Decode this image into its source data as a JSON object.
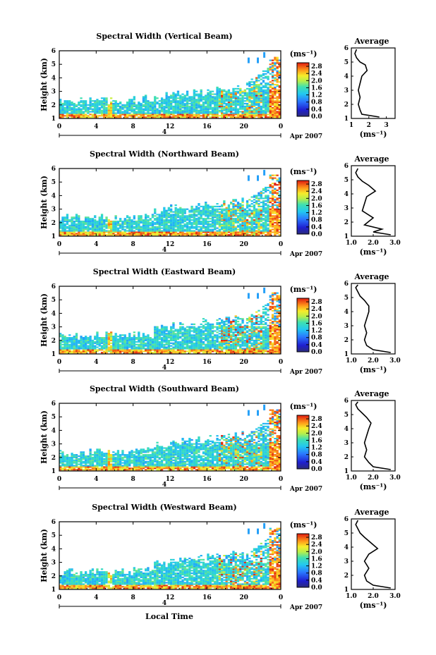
{
  "figure": {
    "xlabel": "Local Time",
    "ylabel": "Height (km)",
    "date_label": "Apr 2007",
    "day_label": "4",
    "x_ticks": [
      "0",
      "4",
      "8",
      "12",
      "16",
      "20",
      "0"
    ],
    "y_ticks": [
      "1",
      "2",
      "3",
      "4",
      "5",
      "6"
    ],
    "avg_title": "Average",
    "avg_xlabel": "(ms⁻¹)",
    "colorbar_unit": "(ms⁻¹)"
  },
  "chart_data": [
    {
      "type": "heatmap",
      "title": "Spectral Width (Vertical Beam)",
      "xlim": [
        0,
        24
      ],
      "ylim": [
        1,
        6
      ],
      "colorbar": {
        "ticks": [
          "0.0",
          "0.4",
          "0.8",
          "1.2",
          "1.6",
          "2.0",
          "2.4",
          "2.8"
        ],
        "range": [
          0,
          3.0
        ]
      },
      "average_profile": {
        "xlim": [
          1,
          3.5
        ],
        "x_ticks": [
          "1",
          "2",
          "3"
        ],
        "points": [
          [
            2.6,
            1.1
          ],
          [
            1.6,
            1.3
          ],
          [
            1.5,
            1.6
          ],
          [
            1.4,
            2.0
          ],
          [
            1.5,
            2.5
          ],
          [
            1.4,
            3.0
          ],
          [
            1.5,
            3.5
          ],
          [
            1.6,
            4.0
          ],
          [
            1.9,
            4.4
          ],
          [
            1.8,
            4.8
          ],
          [
            1.5,
            5.0
          ],
          [
            1.3,
            5.3
          ],
          [
            1.2,
            5.6
          ],
          [
            1.3,
            5.9
          ]
        ]
      }
    },
    {
      "type": "heatmap",
      "title": "Spectral Width (Northward Beam)",
      "xlim": [
        0,
        24
      ],
      "ylim": [
        1,
        6
      ],
      "colorbar": {
        "ticks": [
          "0.0",
          "0.4",
          "0.8",
          "1.2",
          "1.6",
          "2.0",
          "2.4",
          "2.8"
        ],
        "range": [
          0,
          3.0
        ]
      },
      "average_profile": {
        "xlim": [
          1.0,
          3.0
        ],
        "x_ticks": [
          "1.0",
          "2.0",
          "3.0"
        ],
        "points": [
          [
            2.8,
            1.1
          ],
          [
            2.0,
            1.3
          ],
          [
            2.4,
            1.5
          ],
          [
            1.6,
            1.8
          ],
          [
            2.0,
            2.3
          ],
          [
            1.5,
            2.8
          ],
          [
            1.6,
            3.3
          ],
          [
            1.7,
            3.8
          ],
          [
            2.1,
            4.2
          ],
          [
            1.8,
            4.6
          ],
          [
            1.5,
            4.9
          ],
          [
            1.3,
            5.2
          ],
          [
            1.2,
            5.5
          ],
          [
            1.3,
            5.8
          ]
        ]
      }
    },
    {
      "type": "heatmap",
      "title": "Spectral Width (Eastward Beam)",
      "xlim": [
        0,
        24
      ],
      "ylim": [
        1,
        6
      ],
      "colorbar": {
        "ticks": [
          "0.0",
          "0.4",
          "0.8",
          "1.2",
          "1.6",
          "2.0",
          "2.4",
          "2.8"
        ],
        "range": [
          0,
          3.0
        ]
      },
      "average_profile": {
        "xlim": [
          1.0,
          3.0
        ],
        "x_ticks": [
          "1.0",
          "2.0",
          "3.0"
        ],
        "points": [
          [
            2.8,
            1.1
          ],
          [
            2.0,
            1.3
          ],
          [
            1.7,
            1.6
          ],
          [
            1.6,
            2.0
          ],
          [
            1.7,
            2.5
          ],
          [
            1.6,
            3.0
          ],
          [
            1.7,
            3.5
          ],
          [
            1.8,
            4.0
          ],
          [
            1.8,
            4.4
          ],
          [
            1.6,
            4.8
          ],
          [
            1.4,
            5.1
          ],
          [
            1.3,
            5.4
          ],
          [
            1.2,
            5.7
          ],
          [
            1.3,
            5.9
          ]
        ]
      }
    },
    {
      "type": "heatmap",
      "title": "Spectral Width (Southward Beam)",
      "xlim": [
        0,
        24
      ],
      "ylim": [
        1,
        6
      ],
      "colorbar": {
        "ticks": [
          "0.0",
          "0.4",
          "0.8",
          "1.2",
          "1.6",
          "2.0",
          "2.4",
          "2.8"
        ],
        "range": [
          0,
          3.0
        ]
      },
      "average_profile": {
        "xlim": [
          1.0,
          3.0
        ],
        "x_ticks": [
          "1.0",
          "2.0",
          "3.0"
        ],
        "points": [
          [
            2.8,
            1.1
          ],
          [
            2.0,
            1.3
          ],
          [
            1.8,
            1.6
          ],
          [
            1.6,
            2.0
          ],
          [
            1.7,
            2.5
          ],
          [
            1.6,
            3.0
          ],
          [
            1.7,
            3.5
          ],
          [
            1.8,
            4.0
          ],
          [
            1.9,
            4.4
          ],
          [
            1.7,
            4.8
          ],
          [
            1.5,
            5.1
          ],
          [
            1.3,
            5.4
          ],
          [
            1.2,
            5.7
          ],
          [
            1.3,
            5.9
          ]
        ]
      }
    },
    {
      "type": "heatmap",
      "title": "Spectral Width (Westward Beam)",
      "xlim": [
        0,
        24
      ],
      "ylim": [
        1,
        6
      ],
      "colorbar": {
        "ticks": [
          "0.0",
          "0.4",
          "0.8",
          "1.2",
          "1.6",
          "2.0",
          "2.4",
          "2.8"
        ],
        "range": [
          0,
          3.0
        ]
      },
      "average_profile": {
        "xlim": [
          1.0,
          3.0
        ],
        "x_ticks": [
          "1.0",
          "2.0",
          "3.0"
        ],
        "points": [
          [
            2.8,
            1.1
          ],
          [
            2.0,
            1.3
          ],
          [
            1.7,
            1.6
          ],
          [
            1.6,
            2.0
          ],
          [
            1.8,
            2.5
          ],
          [
            1.6,
            3.0
          ],
          [
            1.8,
            3.5
          ],
          [
            2.2,
            3.9
          ],
          [
            1.9,
            4.3
          ],
          [
            1.6,
            4.7
          ],
          [
            1.4,
            5.0
          ],
          [
            1.3,
            5.3
          ],
          [
            1.2,
            5.6
          ],
          [
            1.3,
            5.9
          ]
        ]
      }
    }
  ]
}
